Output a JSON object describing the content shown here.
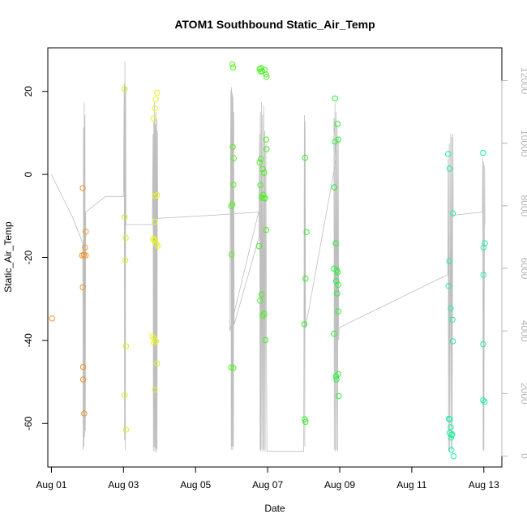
{
  "chart_data": {
    "type": "scatter",
    "title": "ATOM1 Southbound Static_Air_Temp",
    "xlabel": "Date",
    "ylabel": "Static_Air_Temp",
    "x_unit": "day of August",
    "xlim": [
      0.9,
      13.5
    ],
    "ylim": [
      -70.5,
      30.5
    ],
    "x_ticks": [
      1,
      3,
      5,
      7,
      9,
      11,
      13
    ],
    "x_tick_labels": [
      "Aug 01",
      "Aug 03",
      "Aug 05",
      "Aug 07",
      "Aug 09",
      "Aug 11",
      "Aug 13"
    ],
    "y_ticks": [
      -60,
      -40,
      -20,
      0,
      20
    ],
    "y_tick_labels": [
      "-60",
      "-40",
      "-20",
      "0",
      "20"
    ],
    "y2_ticks": [
      0,
      2000,
      4000,
      6000,
      8000,
      10000,
      12000
    ],
    "y2_tick_labels": [
      "0",
      "2000",
      "4000",
      "6000",
      "8000",
      "10000",
      "12000"
    ],
    "y2lim": [
      -350,
      13050
    ],
    "colors": {
      "points_palette": [
        "#ff7f00",
        "#ffb000",
        "#e6ff00",
        "#aaff00",
        "#55ff00",
        "#00ff40",
        "#00ffaa"
      ],
      "altitude_line": "#bebebe",
      "axis": "#000000",
      "right_axis": "#b4b4b4"
    },
    "scatter": [
      {
        "x": 1.02,
        "y": -34.7,
        "color": "#f39428"
      },
      {
        "x": 1.87,
        "y": -3.3,
        "color": "#f39428"
      },
      {
        "x": 1.87,
        "y": -27.2,
        "color": "#f39428"
      },
      {
        "x": 1.88,
        "y": -46.4,
        "color": "#f39428"
      },
      {
        "x": 1.88,
        "y": -49.4,
        "color": "#f39428"
      },
      {
        "x": 1.91,
        "y": -57.6,
        "color": "#f39428"
      },
      {
        "x": 1.9,
        "y": -19.4,
        "color": "#f39428"
      },
      {
        "x": 1.85,
        "y": -19.5,
        "color": "#f39428"
      },
      {
        "x": 1.93,
        "y": -17.6,
        "color": "#f39428"
      },
      {
        "x": 1.95,
        "y": -13.8,
        "color": "#f39428"
      },
      {
        "x": 1.95,
        "y": -19.5,
        "color": "#f39428"
      },
      {
        "x": 3.03,
        "y": 20.6,
        "color": "#d7f01e"
      },
      {
        "x": 3.03,
        "y": -10.3,
        "color": "#d7f01e"
      },
      {
        "x": 3.06,
        "y": -15.3,
        "color": "#d7f01e"
      },
      {
        "x": 3.05,
        "y": -20.7,
        "color": "#d7f01e"
      },
      {
        "x": 3.07,
        "y": -41.4,
        "color": "#d7f01e"
      },
      {
        "x": 3.03,
        "y": -53.2,
        "color": "#d7f01e"
      },
      {
        "x": 3.07,
        "y": -61.5,
        "color": "#d7f01e"
      },
      {
        "x": 3.83,
        "y": 13.5,
        "color": "#e6f51e"
      },
      {
        "x": 3.87,
        "y": 15.9,
        "color": "#e6f51e"
      },
      {
        "x": 3.9,
        "y": 18.1,
        "color": "#e6f51e"
      },
      {
        "x": 3.93,
        "y": 19.7,
        "color": "#e6f51e"
      },
      {
        "x": 3.87,
        "y": -11.4,
        "color": "#e6f51e"
      },
      {
        "x": 3.93,
        "y": -5.0,
        "color": "#e6f51e"
      },
      {
        "x": 3.87,
        "y": -5.2,
        "color": "#e6f51e"
      },
      {
        "x": 3.82,
        "y": -15.5,
        "color": "#e6f51e"
      },
      {
        "x": 3.88,
        "y": -15.7,
        "color": "#e6f51e"
      },
      {
        "x": 3.85,
        "y": -15.9,
        "color": "#e6f51e"
      },
      {
        "x": 3.91,
        "y": -16.8,
        "color": "#e6f51e"
      },
      {
        "x": 3.95,
        "y": -17.2,
        "color": "#e6f51e"
      },
      {
        "x": 3.81,
        "y": -39.0,
        "color": "#e6f51e"
      },
      {
        "x": 3.85,
        "y": -39.6,
        "color": "#e6f51e"
      },
      {
        "x": 3.9,
        "y": -40.2,
        "color": "#e6f51e"
      },
      {
        "x": 3.84,
        "y": -40.6,
        "color": "#e6f51e"
      },
      {
        "x": 3.93,
        "y": -45.5,
        "color": "#e6f51e"
      },
      {
        "x": 3.87,
        "y": -51.9,
        "color": "#e6f51e"
      },
      {
        "x": 6.02,
        "y": 26.5,
        "color": "#55f01e"
      },
      {
        "x": 6.04,
        "y": 25.8,
        "color": "#55f01e"
      },
      {
        "x": 6.03,
        "y": 6.6,
        "color": "#55f01e"
      },
      {
        "x": 6.06,
        "y": 3.9,
        "color": "#55f01e"
      },
      {
        "x": 6.05,
        "y": -2.5,
        "color": "#55f01e"
      },
      {
        "x": 6.02,
        "y": -7.2,
        "color": "#55f01e"
      },
      {
        "x": 5.99,
        "y": -7.7,
        "color": "#55f01e"
      },
      {
        "x": 6.0,
        "y": -19.3,
        "color": "#55f01e"
      },
      {
        "x": 5.99,
        "y": -46.5,
        "color": "#55f01e"
      },
      {
        "x": 6.05,
        "y": -46.6,
        "color": "#55f01e"
      },
      {
        "x": 6.78,
        "y": 25.4,
        "color": "#48f01e"
      },
      {
        "x": 6.82,
        "y": 25.6,
        "color": "#48f01e"
      },
      {
        "x": 6.85,
        "y": 24.9,
        "color": "#48f01e"
      },
      {
        "x": 6.92,
        "y": 25.2,
        "color": "#48f01e"
      },
      {
        "x": 6.8,
        "y": 24.8,
        "color": "#48f01e"
      },
      {
        "x": 6.95,
        "y": 24.1,
        "color": "#48f01e"
      },
      {
        "x": 6.97,
        "y": 23.5,
        "color": "#48f01e"
      },
      {
        "x": 6.96,
        "y": 8.4,
        "color": "#48f01e"
      },
      {
        "x": 6.97,
        "y": 6.1,
        "color": "#48f01e"
      },
      {
        "x": 6.81,
        "y": 3.7,
        "color": "#48f01e"
      },
      {
        "x": 6.78,
        "y": 2.9,
        "color": "#48f01e"
      },
      {
        "x": 6.86,
        "y": 1.3,
        "color": "#48f01e"
      },
      {
        "x": 6.9,
        "y": 0.4,
        "color": "#48f01e"
      },
      {
        "x": 6.8,
        "y": -2.6,
        "color": "#48f01e"
      },
      {
        "x": 6.88,
        "y": -4.9,
        "color": "#48f01e"
      },
      {
        "x": 6.83,
        "y": -5.5,
        "color": "#48f01e"
      },
      {
        "x": 6.89,
        "y": -5.7,
        "color": "#48f01e"
      },
      {
        "x": 6.93,
        "y": -5.8,
        "color": "#48f01e"
      },
      {
        "x": 6.96,
        "y": -13.4,
        "color": "#48f01e"
      },
      {
        "x": 6.76,
        "y": -17.3,
        "color": "#48f01e"
      },
      {
        "x": 6.83,
        "y": -28.9,
        "color": "#48f01e"
      },
      {
        "x": 6.79,
        "y": -30.4,
        "color": "#48f01e"
      },
      {
        "x": 6.9,
        "y": -33.6,
        "color": "#48f01e"
      },
      {
        "x": 6.86,
        "y": -34.0,
        "color": "#48f01e"
      },
      {
        "x": 6.94,
        "y": -39.9,
        "color": "#48f01e"
      },
      {
        "x": 8.04,
        "y": 4.0,
        "color": "#2ef01e"
      },
      {
        "x": 8.08,
        "y": -13.9,
        "color": "#2ef01e"
      },
      {
        "x": 8.05,
        "y": -25.1,
        "color": "#2ef01e"
      },
      {
        "x": 8.02,
        "y": -36.1,
        "color": "#2ef01e"
      },
      {
        "x": 8.03,
        "y": -59.0,
        "color": "#2ef01e"
      },
      {
        "x": 8.05,
        "y": -59.6,
        "color": "#2ef01e"
      },
      {
        "x": 8.87,
        "y": 18.3,
        "color": "#28f03c"
      },
      {
        "x": 8.94,
        "y": 12.2,
        "color": "#28f03c"
      },
      {
        "x": 8.96,
        "y": 8.4,
        "color": "#28f03c"
      },
      {
        "x": 8.87,
        "y": 7.9,
        "color": "#28f03c"
      },
      {
        "x": 8.85,
        "y": -3.1,
        "color": "#28f03c"
      },
      {
        "x": 8.89,
        "y": -16.6,
        "color": "#28f03c"
      },
      {
        "x": 8.84,
        "y": -22.7,
        "color": "#28f03c"
      },
      {
        "x": 8.92,
        "y": -23.1,
        "color": "#28f03c"
      },
      {
        "x": 8.94,
        "y": -23.6,
        "color": "#28f03c"
      },
      {
        "x": 8.9,
        "y": -25.7,
        "color": "#28f03c"
      },
      {
        "x": 8.96,
        "y": -26.6,
        "color": "#28f03c"
      },
      {
        "x": 8.93,
        "y": -28.7,
        "color": "#28f03c"
      },
      {
        "x": 8.96,
        "y": -33.0,
        "color": "#28f03c"
      },
      {
        "x": 8.84,
        "y": -38.4,
        "color": "#28f03c"
      },
      {
        "x": 8.96,
        "y": -48.1,
        "color": "#28f03c"
      },
      {
        "x": 8.9,
        "y": -48.7,
        "color": "#28f03c"
      },
      {
        "x": 8.91,
        "y": -49.4,
        "color": "#28f03c"
      },
      {
        "x": 8.97,
        "y": -53.4,
        "color": "#28f03c"
      },
      {
        "x": 12.01,
        "y": 4.9,
        "color": "#1ef0a0"
      },
      {
        "x": 12.05,
        "y": 1.4,
        "color": "#1ef0a0"
      },
      {
        "x": 12.14,
        "y": -9.4,
        "color": "#1ef0a0"
      },
      {
        "x": 12.04,
        "y": -20.9,
        "color": "#1ef0a0"
      },
      {
        "x": 12.02,
        "y": -26.9,
        "color": "#1ef0a0"
      },
      {
        "x": 12.08,
        "y": -32.3,
        "color": "#1ef0a0"
      },
      {
        "x": 12.13,
        "y": -35.0,
        "color": "#1ef0a0"
      },
      {
        "x": 12.14,
        "y": -40.2,
        "color": "#1ef0a0"
      },
      {
        "x": 12.03,
        "y": -58.9,
        "color": "#1ef0a0"
      },
      {
        "x": 12.06,
        "y": -59.0,
        "color": "#1ef0a0"
      },
      {
        "x": 12.08,
        "y": -60.9,
        "color": "#1ef0a0"
      },
      {
        "x": 12.05,
        "y": -62.3,
        "color": "#1ef0a0"
      },
      {
        "x": 12.12,
        "y": -62.6,
        "color": "#1ef0a0"
      },
      {
        "x": 12.09,
        "y": -63.4,
        "color": "#1ef0a0"
      },
      {
        "x": 12.11,
        "y": -62.8,
        "color": "#1ef0a0"
      },
      {
        "x": 12.1,
        "y": -66.4,
        "color": "#1ef0a0"
      },
      {
        "x": 12.16,
        "y": -67.9,
        "color": "#1ef0a0"
      },
      {
        "x": 12.98,
        "y": 5.2,
        "color": "#1ef0a0"
      },
      {
        "x": 13.03,
        "y": -16.6,
        "color": "#1ef0a0"
      },
      {
        "x": 12.99,
        "y": -17.6,
        "color": "#1ef0a0"
      },
      {
        "x": 12.99,
        "y": -24.2,
        "color": "#1ef0a0"
      },
      {
        "x": 12.98,
        "y": -40.9,
        "color": "#1ef0a0"
      },
      {
        "x": 12.98,
        "y": -54.4,
        "color": "#1ef0a0"
      },
      {
        "x": 13.02,
        "y": -54.8,
        "color": "#1ef0a0"
      }
    ],
    "altitude_series": [
      {
        "x": 1.0,
        "y2": 9000
      },
      {
        "x": 1.6,
        "y2": 7600
      },
      {
        "x": 1.87,
        "y2": 6800
      },
      {
        "x": 1.88,
        "y2": 200
      },
      {
        "x": 1.89,
        "y2": 10500
      },
      {
        "x": 1.9,
        "y2": 300
      },
      {
        "x": 1.91,
        "y2": 11300
      },
      {
        "x": 1.92,
        "y2": 600
      },
      {
        "x": 1.93,
        "y2": 10900
      },
      {
        "x": 1.94,
        "y2": 800
      },
      {
        "x": 1.95,
        "y2": 7800
      },
      {
        "x": 2.5,
        "y2": 8300
      },
      {
        "x": 3.0,
        "y2": 8300
      },
      {
        "x": 3.02,
        "y2": 11900
      },
      {
        "x": 3.03,
        "y2": 500
      },
      {
        "x": 3.04,
        "y2": 12600
      },
      {
        "x": 3.05,
        "y2": 200
      },
      {
        "x": 3.06,
        "y2": 11800
      },
      {
        "x": 3.07,
        "y2": 7400
      },
      {
        "x": 3.8,
        "y2": 7400
      },
      {
        "x": 3.82,
        "y2": 10300
      },
      {
        "x": 3.83,
        "y2": 150
      },
      {
        "x": 3.84,
        "y2": 10700
      },
      {
        "x": 3.85,
        "y2": 300
      },
      {
        "x": 3.86,
        "y2": 11300
      },
      {
        "x": 3.87,
        "y2": 150
      },
      {
        "x": 3.88,
        "y2": 10600
      },
      {
        "x": 3.89,
        "y2": 250
      },
      {
        "x": 3.9,
        "y2": 11000
      },
      {
        "x": 3.91,
        "y2": 100
      },
      {
        "x": 3.92,
        "y2": 10800
      },
      {
        "x": 3.93,
        "y2": 200
      },
      {
        "x": 3.94,
        "y2": 10400
      },
      {
        "x": 3.95,
        "y2": 7600
      },
      {
        "x": 5.5,
        "y2": 7700
      },
      {
        "x": 6.75,
        "y2": 7800
      },
      {
        "x": 5.95,
        "y2": 4000
      },
      {
        "x": 5.98,
        "y2": 11700
      },
      {
        "x": 5.99,
        "y2": 200
      },
      {
        "x": 6.0,
        "y2": 11800
      },
      {
        "x": 6.01,
        "y2": 300
      },
      {
        "x": 6.02,
        "y2": 11600
      },
      {
        "x": 6.03,
        "y2": 200
      },
      {
        "x": 6.04,
        "y2": 11500
      },
      {
        "x": 6.05,
        "y2": 300
      },
      {
        "x": 6.06,
        "y2": 11000
      },
      {
        "x": 6.07,
        "y2": 4200
      },
      {
        "x": 6.76,
        "y2": 7000
      },
      {
        "x": 6.78,
        "y2": 10300
      },
      {
        "x": 6.79,
        "y2": 200
      },
      {
        "x": 6.8,
        "y2": 11000
      },
      {
        "x": 6.81,
        "y2": 150
      },
      {
        "x": 6.83,
        "y2": 11300
      },
      {
        "x": 6.84,
        "y2": 200
      },
      {
        "x": 6.86,
        "y2": 10900
      },
      {
        "x": 6.87,
        "y2": 150
      },
      {
        "x": 6.89,
        "y2": 11200
      },
      {
        "x": 6.9,
        "y2": 200
      },
      {
        "x": 6.92,
        "y2": 10400
      },
      {
        "x": 6.93,
        "y2": 150
      },
      {
        "x": 6.95,
        "y2": 10000
      },
      {
        "x": 6.97,
        "y2": 2500
      },
      {
        "x": 6.98,
        "y2": 150
      },
      {
        "x": 8.0,
        "y2": 150
      },
      {
        "x": 8.02,
        "y2": 10900
      },
      {
        "x": 8.03,
        "y2": 300
      },
      {
        "x": 8.04,
        "y2": 10700
      },
      {
        "x": 8.05,
        "y2": 4100
      },
      {
        "x": 8.9,
        "y2": 9500
      },
      {
        "x": 8.84,
        "y2": 10800
      },
      {
        "x": 8.85,
        "y2": 200
      },
      {
        "x": 8.87,
        "y2": 11300
      },
      {
        "x": 8.88,
        "y2": 150
      },
      {
        "x": 8.9,
        "y2": 11000
      },
      {
        "x": 8.91,
        "y2": 200
      },
      {
        "x": 8.93,
        "y2": 10600
      },
      {
        "x": 8.94,
        "y2": 150
      },
      {
        "x": 8.96,
        "y2": 10200
      },
      {
        "x": 8.97,
        "y2": 3700
      },
      {
        "x": 8.98,
        "y2": 4100
      },
      {
        "x": 12.0,
        "y2": 5800
      },
      {
        "x": 12.01,
        "y2": 9500
      },
      {
        "x": 12.02,
        "y2": 200
      },
      {
        "x": 12.04,
        "y2": 10000
      },
      {
        "x": 12.05,
        "y2": 150
      },
      {
        "x": 12.08,
        "y2": 10300
      },
      {
        "x": 12.09,
        "y2": 150
      },
      {
        "x": 12.11,
        "y2": 10200
      },
      {
        "x": 12.12,
        "y2": 200
      },
      {
        "x": 12.14,
        "y2": 10300
      },
      {
        "x": 12.15,
        "y2": 7700
      },
      {
        "x": 12.96,
        "y2": 7800
      },
      {
        "x": 12.97,
        "y2": 9500
      },
      {
        "x": 12.98,
        "y2": 200
      },
      {
        "x": 12.99,
        "y2": 9400
      },
      {
        "x": 13.0,
        "y2": 150
      },
      {
        "x": 13.02,
        "y2": 9300
      },
      {
        "x": 13.03,
        "y2": 7400
      }
    ]
  }
}
